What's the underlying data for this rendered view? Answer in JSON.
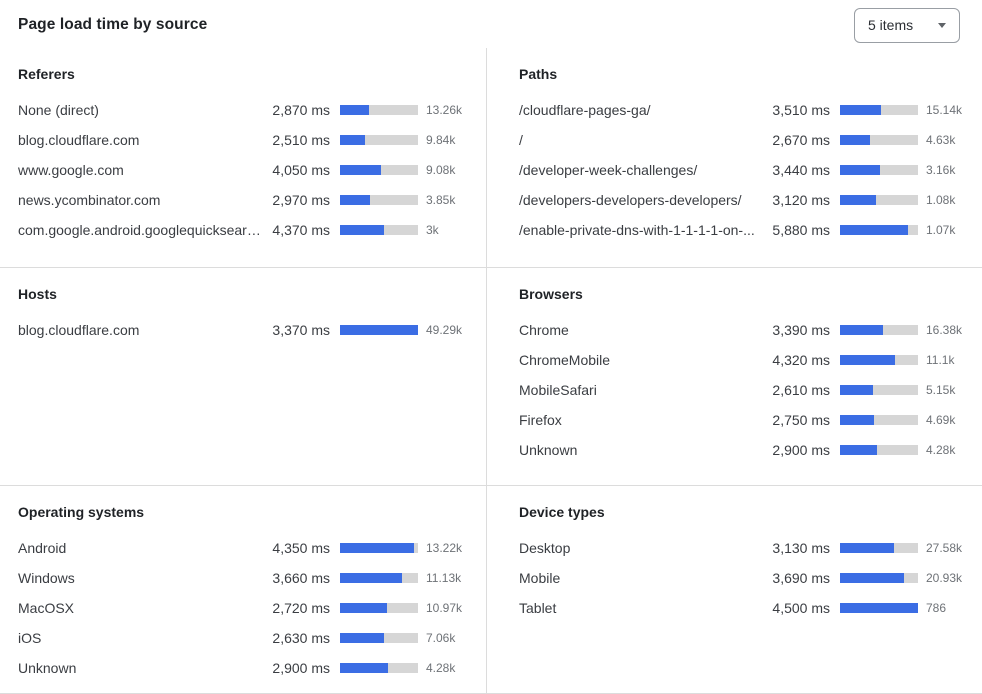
{
  "header": {
    "title": "Page load time by source",
    "items_select": {
      "value": "5 items"
    }
  },
  "colors": {
    "bar_fill": "#3b6de4",
    "bar_track": "#d6d6d6",
    "divider": "#dcdcdc"
  },
  "sections": [
    {
      "id": "referers",
      "title": "Referers",
      "rows": [
        {
          "label": "None (direct)",
          "ms": "2,870 ms",
          "count": "13.26k",
          "bar_pct": 37
        },
        {
          "label": "blog.cloudflare.com",
          "ms": "2,510 ms",
          "count": "9.84k",
          "bar_pct": 32
        },
        {
          "label": "www.google.com",
          "ms": "4,050 ms",
          "count": "9.08k",
          "bar_pct": 52
        },
        {
          "label": "news.ycombinator.com",
          "ms": "2,970 ms",
          "count": "3.85k",
          "bar_pct": 38
        },
        {
          "label": "com.google.android.googlequicksearc...",
          "ms": "4,370 ms",
          "count": "3k",
          "bar_pct": 57
        }
      ]
    },
    {
      "id": "paths",
      "title": "Paths",
      "rows": [
        {
          "label": "/cloudflare-pages-ga/",
          "ms": "3,510 ms",
          "count": "15.14k",
          "bar_pct": 52
        },
        {
          "label": "/",
          "ms": "2,670 ms",
          "count": "4.63k",
          "bar_pct": 39
        },
        {
          "label": "/developer-week-challenges/",
          "ms": "3,440 ms",
          "count": "3.16k",
          "bar_pct": 51
        },
        {
          "label": "/developers-developers-developers/",
          "ms": "3,120 ms",
          "count": "1.08k",
          "bar_pct": 46
        },
        {
          "label": "/enable-private-dns-with-1-1-1-1-on-...",
          "ms": "5,880 ms",
          "count": "1.07k",
          "bar_pct": 87
        }
      ]
    },
    {
      "id": "hosts",
      "title": "Hosts",
      "rows": [
        {
          "label": "blog.cloudflare.com",
          "ms": "3,370 ms",
          "count": "49.29k",
          "bar_pct": 100
        }
      ]
    },
    {
      "id": "browsers",
      "title": "Browsers",
      "rows": [
        {
          "label": "Chrome",
          "ms": "3,390 ms",
          "count": "16.38k",
          "bar_pct": 55
        },
        {
          "label": "ChromeMobile",
          "ms": "4,320 ms",
          "count": "11.1k",
          "bar_pct": 71
        },
        {
          "label": "MobileSafari",
          "ms": "2,610 ms",
          "count": "5.15k",
          "bar_pct": 42
        },
        {
          "label": "Firefox",
          "ms": "2,750 ms",
          "count": "4.69k",
          "bar_pct": 44
        },
        {
          "label": "Unknown",
          "ms": "2,900 ms",
          "count": "4.28k",
          "bar_pct": 47
        }
      ]
    },
    {
      "id": "operating-systems",
      "title": "Operating systems",
      "rows": [
        {
          "label": "Android",
          "ms": "4,350 ms",
          "count": "13.22k",
          "bar_pct": 95
        },
        {
          "label": "Windows",
          "ms": "3,660 ms",
          "count": "11.13k",
          "bar_pct": 79
        },
        {
          "label": "MacOSX",
          "ms": "2,720 ms",
          "count": "10.97k",
          "bar_pct": 60
        },
        {
          "label": "iOS",
          "ms": "2,630 ms",
          "count": "7.06k",
          "bar_pct": 56
        },
        {
          "label": "Unknown",
          "ms": "2,900 ms",
          "count": "4.28k",
          "bar_pct": 62
        }
      ]
    },
    {
      "id": "device-types",
      "title": "Device types",
      "rows": [
        {
          "label": "Desktop",
          "ms": "3,130 ms",
          "count": "27.58k",
          "bar_pct": 69
        },
        {
          "label": "Mobile",
          "ms": "3,690 ms",
          "count": "20.93k",
          "bar_pct": 82
        },
        {
          "label": "Tablet",
          "ms": "4,500 ms",
          "count": "786",
          "bar_pct": 100
        }
      ]
    }
  ],
  "chart_data": [
    {
      "type": "bar",
      "title": "Referers",
      "orientation": "horizontal",
      "unit": "ms",
      "categories": [
        "None (direct)",
        "blog.cloudflare.com",
        "www.google.com",
        "news.ycombinator.com",
        "com.google.android.googlequicksearc..."
      ],
      "values": [
        2870,
        2510,
        4050,
        2970,
        4370
      ],
      "count_labels": [
        "13.26k",
        "9.84k",
        "9.08k",
        "3.85k",
        "3k"
      ]
    },
    {
      "type": "bar",
      "title": "Paths",
      "orientation": "horizontal",
      "unit": "ms",
      "categories": [
        "/cloudflare-pages-ga/",
        "/",
        "/developer-week-challenges/",
        "/developers-developers-developers/",
        "/enable-private-dns-with-1-1-1-1-on-..."
      ],
      "values": [
        3510,
        2670,
        3440,
        3120,
        5880
      ],
      "count_labels": [
        "15.14k",
        "4.63k",
        "3.16k",
        "1.08k",
        "1.07k"
      ]
    },
    {
      "type": "bar",
      "title": "Hosts",
      "orientation": "horizontal",
      "unit": "ms",
      "categories": [
        "blog.cloudflare.com"
      ],
      "values": [
        3370
      ],
      "count_labels": [
        "49.29k"
      ]
    },
    {
      "type": "bar",
      "title": "Browsers",
      "orientation": "horizontal",
      "unit": "ms",
      "categories": [
        "Chrome",
        "ChromeMobile",
        "MobileSafari",
        "Firefox",
        "Unknown"
      ],
      "values": [
        3390,
        4320,
        2610,
        2750,
        2900
      ],
      "count_labels": [
        "16.38k",
        "11.1k",
        "5.15k",
        "4.69k",
        "4.28k"
      ]
    },
    {
      "type": "bar",
      "title": "Operating systems",
      "orientation": "horizontal",
      "unit": "ms",
      "categories": [
        "Android",
        "Windows",
        "MacOSX",
        "iOS",
        "Unknown"
      ],
      "values": [
        4350,
        3660,
        2720,
        2630,
        2900
      ],
      "count_labels": [
        "13.22k",
        "11.13k",
        "10.97k",
        "7.06k",
        "4.28k"
      ]
    },
    {
      "type": "bar",
      "title": "Device types",
      "orientation": "horizontal",
      "unit": "ms",
      "categories": [
        "Desktop",
        "Mobile",
        "Tablet"
      ],
      "values": [
        3130,
        3690,
        4500
      ],
      "count_labels": [
        "27.58k",
        "20.93k",
        "786"
      ]
    }
  ]
}
